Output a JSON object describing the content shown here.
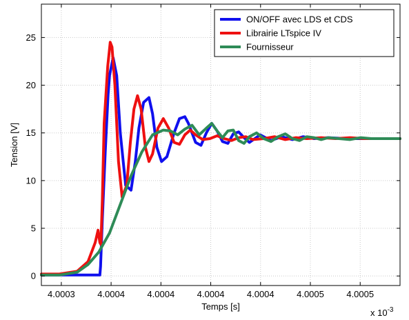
{
  "chart_data": {
    "type": "line",
    "title": "",
    "xlabel": "Temps [s]",
    "ylabel": "Tension [V]",
    "x_exponent_base": "x 10",
    "x_exponent_power": "-3",
    "xlim": [
      0,
      1
    ],
    "ylim": [
      -1,
      28.5
    ],
    "x_tick_positions": [
      0.0556,
      0.1944,
      0.3333,
      0.4722,
      0.6111,
      0.75,
      0.8889
    ],
    "x_tick_labels": [
      "4.0003",
      "4.0004",
      "4.0004",
      "4.0004",
      "4.0004",
      "4.0005",
      "4.0005"
    ],
    "y_ticks": [
      0,
      5,
      10,
      15,
      20,
      25
    ],
    "y_tick_labels": [
      "0",
      "5",
      "10",
      "15",
      "20",
      "25"
    ],
    "grid": true,
    "legend_position": "top-right",
    "series": [
      {
        "name": "ON/OFF avec LDS et CDS",
        "color": "#1010ee",
        "x": [
          0,
          0.163,
          0.165,
          0.17,
          0.178,
          0.186,
          0.19,
          0.2,
          0.21,
          0.22,
          0.235,
          0.25,
          0.262,
          0.272,
          0.285,
          0.3,
          0.31,
          0.322,
          0.335,
          0.35,
          0.37,
          0.385,
          0.4,
          0.41,
          0.43,
          0.445,
          0.46,
          0.475,
          0.49,
          0.505,
          0.52,
          0.535,
          0.55,
          0.565,
          0.58,
          0.595,
          0.61,
          0.625,
          0.64,
          0.655,
          0.67,
          0.7,
          0.73,
          0.76,
          0.8,
          0.85,
          0.9,
          0.95,
          1.0
        ],
        "y": [
          0.1,
          0.1,
          1,
          6,
          13,
          19,
          21,
          22.9,
          21,
          15,
          9.5,
          9,
          12,
          15.5,
          18.2,
          18.7,
          17,
          13.5,
          12,
          12.5,
          15,
          16.5,
          16.7,
          16,
          14,
          13.7,
          15,
          16,
          15.2,
          14.1,
          13.9,
          14.9,
          15.1,
          14.5,
          14,
          14.4,
          14.8,
          14.5,
          14.2,
          14.4,
          14.6,
          14.3,
          14.6,
          14.4,
          14.5,
          14.4,
          14.4,
          14.4,
          14.4
        ]
      },
      {
        "name": "Librairie LTspice IV",
        "color": "#ee1010",
        "x": [
          0,
          0.05,
          0.1,
          0.13,
          0.15,
          0.158,
          0.163,
          0.166,
          0.17,
          0.175,
          0.185,
          0.192,
          0.197,
          0.205,
          0.215,
          0.225,
          0.238,
          0.248,
          0.258,
          0.268,
          0.278,
          0.29,
          0.3,
          0.31,
          0.325,
          0.34,
          0.355,
          0.37,
          0.385,
          0.4,
          0.415,
          0.43,
          0.45,
          0.47,
          0.49,
          0.51,
          0.53,
          0.55,
          0.57,
          0.59,
          0.62,
          0.65,
          0.68,
          0.71,
          0.74,
          0.78,
          0.82,
          0.86,
          0.9,
          0.95,
          1.0
        ],
        "y": [
          0.2,
          0.2,
          0.5,
          1.5,
          3.5,
          4.8,
          3.5,
          3.3,
          8,
          16,
          22,
          24.5,
          24,
          20,
          12,
          8.3,
          9.5,
          14,
          17.5,
          18.9,
          17.5,
          13.5,
          12,
          12.8,
          15.5,
          16.5,
          15.5,
          14,
          13.8,
          14.8,
          15.3,
          14.8,
          14.3,
          14.4,
          14.7,
          14.4,
          14.2,
          14.5,
          14.6,
          14.3,
          14.4,
          14.6,
          14.3,
          14.5,
          14.4,
          14.5,
          14.4,
          14.5,
          14.4,
          14.4,
          14.4
        ]
      },
      {
        "name": "Fournisseur",
        "color": "#2e8b57",
        "x": [
          0,
          0.05,
          0.1,
          0.13,
          0.16,
          0.19,
          0.22,
          0.25,
          0.28,
          0.31,
          0.34,
          0.36,
          0.38,
          0.4,
          0.42,
          0.44,
          0.46,
          0.475,
          0.49,
          0.505,
          0.52,
          0.535,
          0.55,
          0.565,
          0.58,
          0.6,
          0.62,
          0.64,
          0.66,
          0.68,
          0.7,
          0.72,
          0.74,
          0.76,
          0.78,
          0.8,
          0.83,
          0.86,
          0.89,
          0.92,
          0.95,
          1.0
        ],
        "y": [
          0.1,
          0.1,
          0.4,
          1.2,
          2.5,
          4.5,
          7.5,
          10.5,
          13,
          14.8,
          15.3,
          15.2,
          14.8,
          15.4,
          15.8,
          14.8,
          15.5,
          16,
          15.2,
          14.5,
          15.2,
          15.3,
          14.2,
          13.9,
          14.6,
          15,
          14.4,
          14.1,
          14.6,
          14.9,
          14.4,
          14.2,
          14.6,
          14.5,
          14.3,
          14.5,
          14.4,
          14.3,
          14.5,
          14.4,
          14.4,
          14.4
        ]
      }
    ]
  }
}
